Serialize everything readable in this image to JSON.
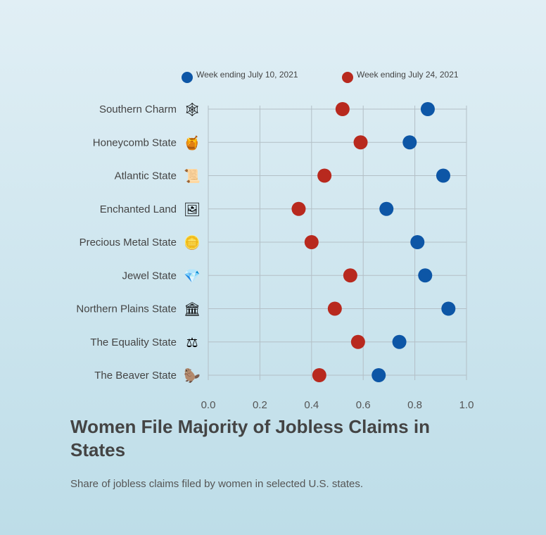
{
  "title": "Women File Majority of Jobless Claims in States",
  "subtitle": "Share of jobless claims filed by women in selected U.S. states.",
  "chart_data": {
    "type": "scatter",
    "orientation": "horizontal-dot-plot",
    "categories": [
      "Southern Charm",
      "Honeycomb State",
      "Atlantic State",
      "Enchanted Land",
      "Precious Metal State",
      "Jewel State",
      "Northern Plains State",
      "The Equality State",
      "The Beaver State"
    ],
    "category_icons": [
      "spiderweb-icon",
      "honeycomb-icon",
      "scroll-document-icon",
      "framed-picture-icon",
      "gold-bar-cart-icon",
      "gem-jar-icon",
      "capitol-building-icon",
      "equality-badge-icon",
      "beaver-icon"
    ],
    "series": [
      {
        "name": "Week ending July 10, 2021",
        "color": "#0d56a6",
        "values": [
          0.85,
          0.78,
          0.91,
          0.69,
          0.81,
          0.84,
          0.93,
          0.74,
          0.66
        ]
      },
      {
        "name": "Week ending July 24, 2021",
        "color": "#b8291e",
        "values": [
          0.52,
          0.59,
          0.45,
          0.35,
          0.4,
          0.55,
          0.49,
          0.58,
          0.43
        ]
      }
    ],
    "xlim": [
      0,
      1
    ],
    "xticks": [
      "0.0",
      "0.2",
      "0.4",
      "0.6",
      "0.8",
      "1.0"
    ],
    "grid": true,
    "legend_position": "top"
  }
}
